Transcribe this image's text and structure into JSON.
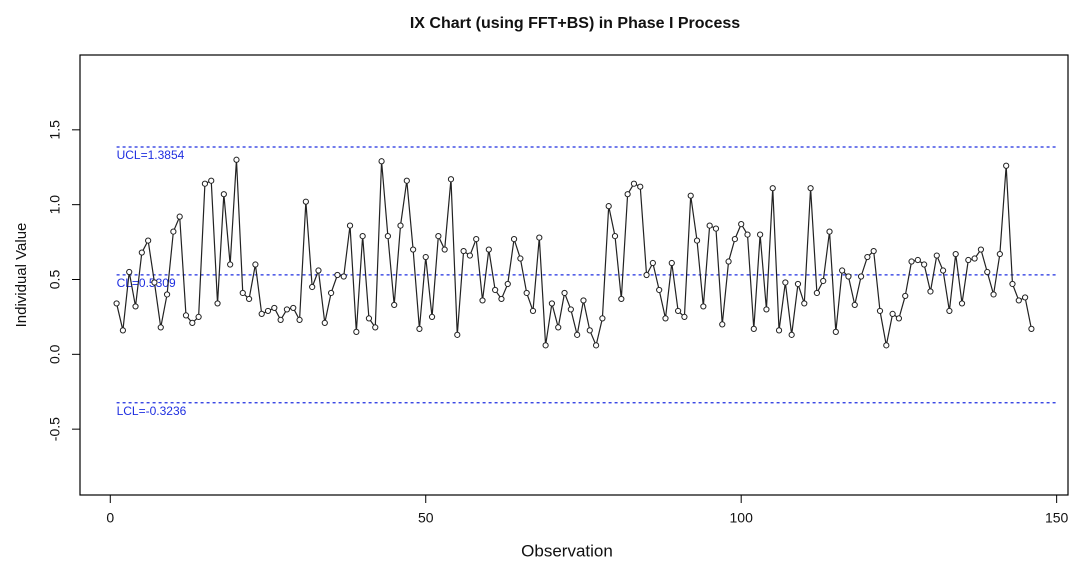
{
  "chart_data": {
    "type": "line",
    "title": "IX Chart (using FFT+BS) in Phase I Process",
    "x_label": "Observation",
    "y_label": "Individual Value",
    "x": [
      1,
      2,
      3,
      4,
      5,
      6,
      7,
      8,
      9,
      10,
      11,
      12,
      13,
      14,
      15,
      16,
      17,
      18,
      19,
      20,
      21,
      22,
      23,
      24,
      25,
      26,
      27,
      28,
      29,
      30,
      31,
      32,
      33,
      34,
      35,
      36,
      37,
      38,
      39,
      40,
      41,
      42,
      43,
      44,
      45,
      46,
      47,
      48,
      49,
      50,
      51,
      52,
      53,
      54,
      55,
      56,
      57,
      58,
      59,
      60,
      61,
      62,
      63,
      64,
      65,
      66,
      67,
      68,
      69,
      70,
      71,
      72,
      73,
      74,
      75,
      76,
      77,
      78,
      79,
      80,
      81,
      82,
      83,
      84,
      85,
      86,
      87,
      88,
      89,
      90,
      91,
      92,
      93,
      94,
      95,
      96,
      97,
      98,
      99,
      100,
      101,
      102,
      103,
      104,
      105,
      106,
      107,
      108,
      109,
      110,
      111,
      112,
      113,
      114,
      115,
      116,
      117,
      118,
      119,
      120,
      121,
      122,
      123,
      124,
      125,
      126,
      127,
      128,
      129,
      130,
      131,
      132,
      133,
      134,
      135,
      136,
      137,
      138,
      139,
      140,
      141,
      142,
      143,
      144,
      145,
      146
    ],
    "values": [
      0.34,
      0.16,
      0.55,
      0.32,
      0.68,
      0.76,
      0.48,
      0.18,
      0.4,
      0.82,
      0.92,
      0.26,
      0.21,
      0.25,
      1.14,
      1.16,
      0.34,
      1.07,
      0.6,
      1.3,
      0.41,
      0.37,
      0.6,
      0.27,
      0.29,
      0.31,
      0.23,
      0.3,
      0.31,
      0.23,
      1.02,
      0.45,
      0.56,
      0.21,
      0.41,
      0.53,
      0.52,
      0.86,
      0.15,
      0.79,
      0.24,
      0.18,
      1.29,
      0.79,
      0.33,
      0.86,
      1.16,
      0.7,
      0.17,
      0.65,
      0.25,
      0.79,
      0.7,
      1.17,
      0.13,
      0.69,
      0.66,
      0.77,
      0.36,
      0.7,
      0.43,
      0.37,
      0.47,
      0.77,
      0.64,
      0.41,
      0.29,
      0.78,
      0.06,
      0.34,
      0.18,
      0.41,
      0.3,
      0.13,
      0.36,
      0.16,
      0.06,
      0.24,
      0.99,
      0.79,
      0.37,
      1.07,
      1.14,
      1.12,
      0.53,
      0.61,
      0.43,
      0.24,
      0.61,
      0.29,
      0.25,
      1.06,
      0.76,
      0.32,
      0.86,
      0.84,
      0.2,
      0.62,
      0.77,
      0.87,
      0.8,
      0.17,
      0.8,
      0.3,
      1.11,
      0.16,
      0.48,
      0.13,
      0.47,
      0.34,
      1.11,
      0.41,
      0.49,
      0.82,
      0.15,
      0.56,
      0.52,
      0.33,
      0.52,
      0.65,
      0.69,
      0.29,
      0.06,
      0.27,
      0.24,
      0.39,
      0.62,
      0.63,
      0.6,
      0.42,
      0.66,
      0.56,
      0.29,
      0.67,
      0.34,
      0.63,
      0.64,
      0.7,
      0.55,
      0.4,
      0.67,
      1.26,
      0.47,
      0.36,
      0.38,
      0.17
    ],
    "color": "#222222",
    "control_lines": [
      {
        "label": "UCL=1.3854",
        "value": 1.3854
      },
      {
        "label": "CL=0.5309",
        "value": 0.5309
      },
      {
        "label": "LCL=-0.3236",
        "value": -0.3236
      }
    ],
    "control_color": "#1f2fe0",
    "xlim": [
      -4.8,
      151.8
    ],
    "xticks": [
      0,
      50,
      100,
      150
    ],
    "ylim": [
      -0.94,
      2.0
    ],
    "yticks": [
      -0.5,
      {
        "value": 0,
        "label": "0.0"
      },
      0.5,
      {
        "value": 1,
        "label": "1.0"
      },
      1.5
    ]
  }
}
